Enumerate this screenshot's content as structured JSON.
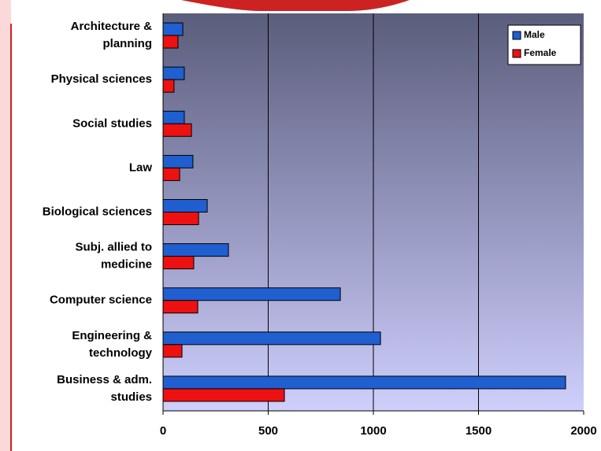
{
  "chart_data": {
    "type": "hbar",
    "categories": [
      "Architecture &\nplanning",
      "Physical sciences",
      "Social studies",
      "Law",
      "Biological sciences",
      "Subj. allied to\nmedicine",
      "Computer science",
      "Engineering &\ntechnology",
      "Business & adm.\nstudies"
    ],
    "series": [
      {
        "name": "Male",
        "color": "#1f5fd0",
        "values": [
          94,
          101,
          101,
          142,
          210,
          311,
          843,
          1034,
          1914
        ]
      },
      {
        "name": "Female",
        "color": "#ee1111",
        "values": [
          71,
          52,
          135,
          79,
          169,
          146,
          165,
          90,
          577
        ]
      }
    ],
    "xlim": [
      0,
      2000
    ],
    "xticks": [
      0,
      500,
      1000,
      1500,
      2000
    ],
    "grid": true,
    "legend": "top-right"
  }
}
